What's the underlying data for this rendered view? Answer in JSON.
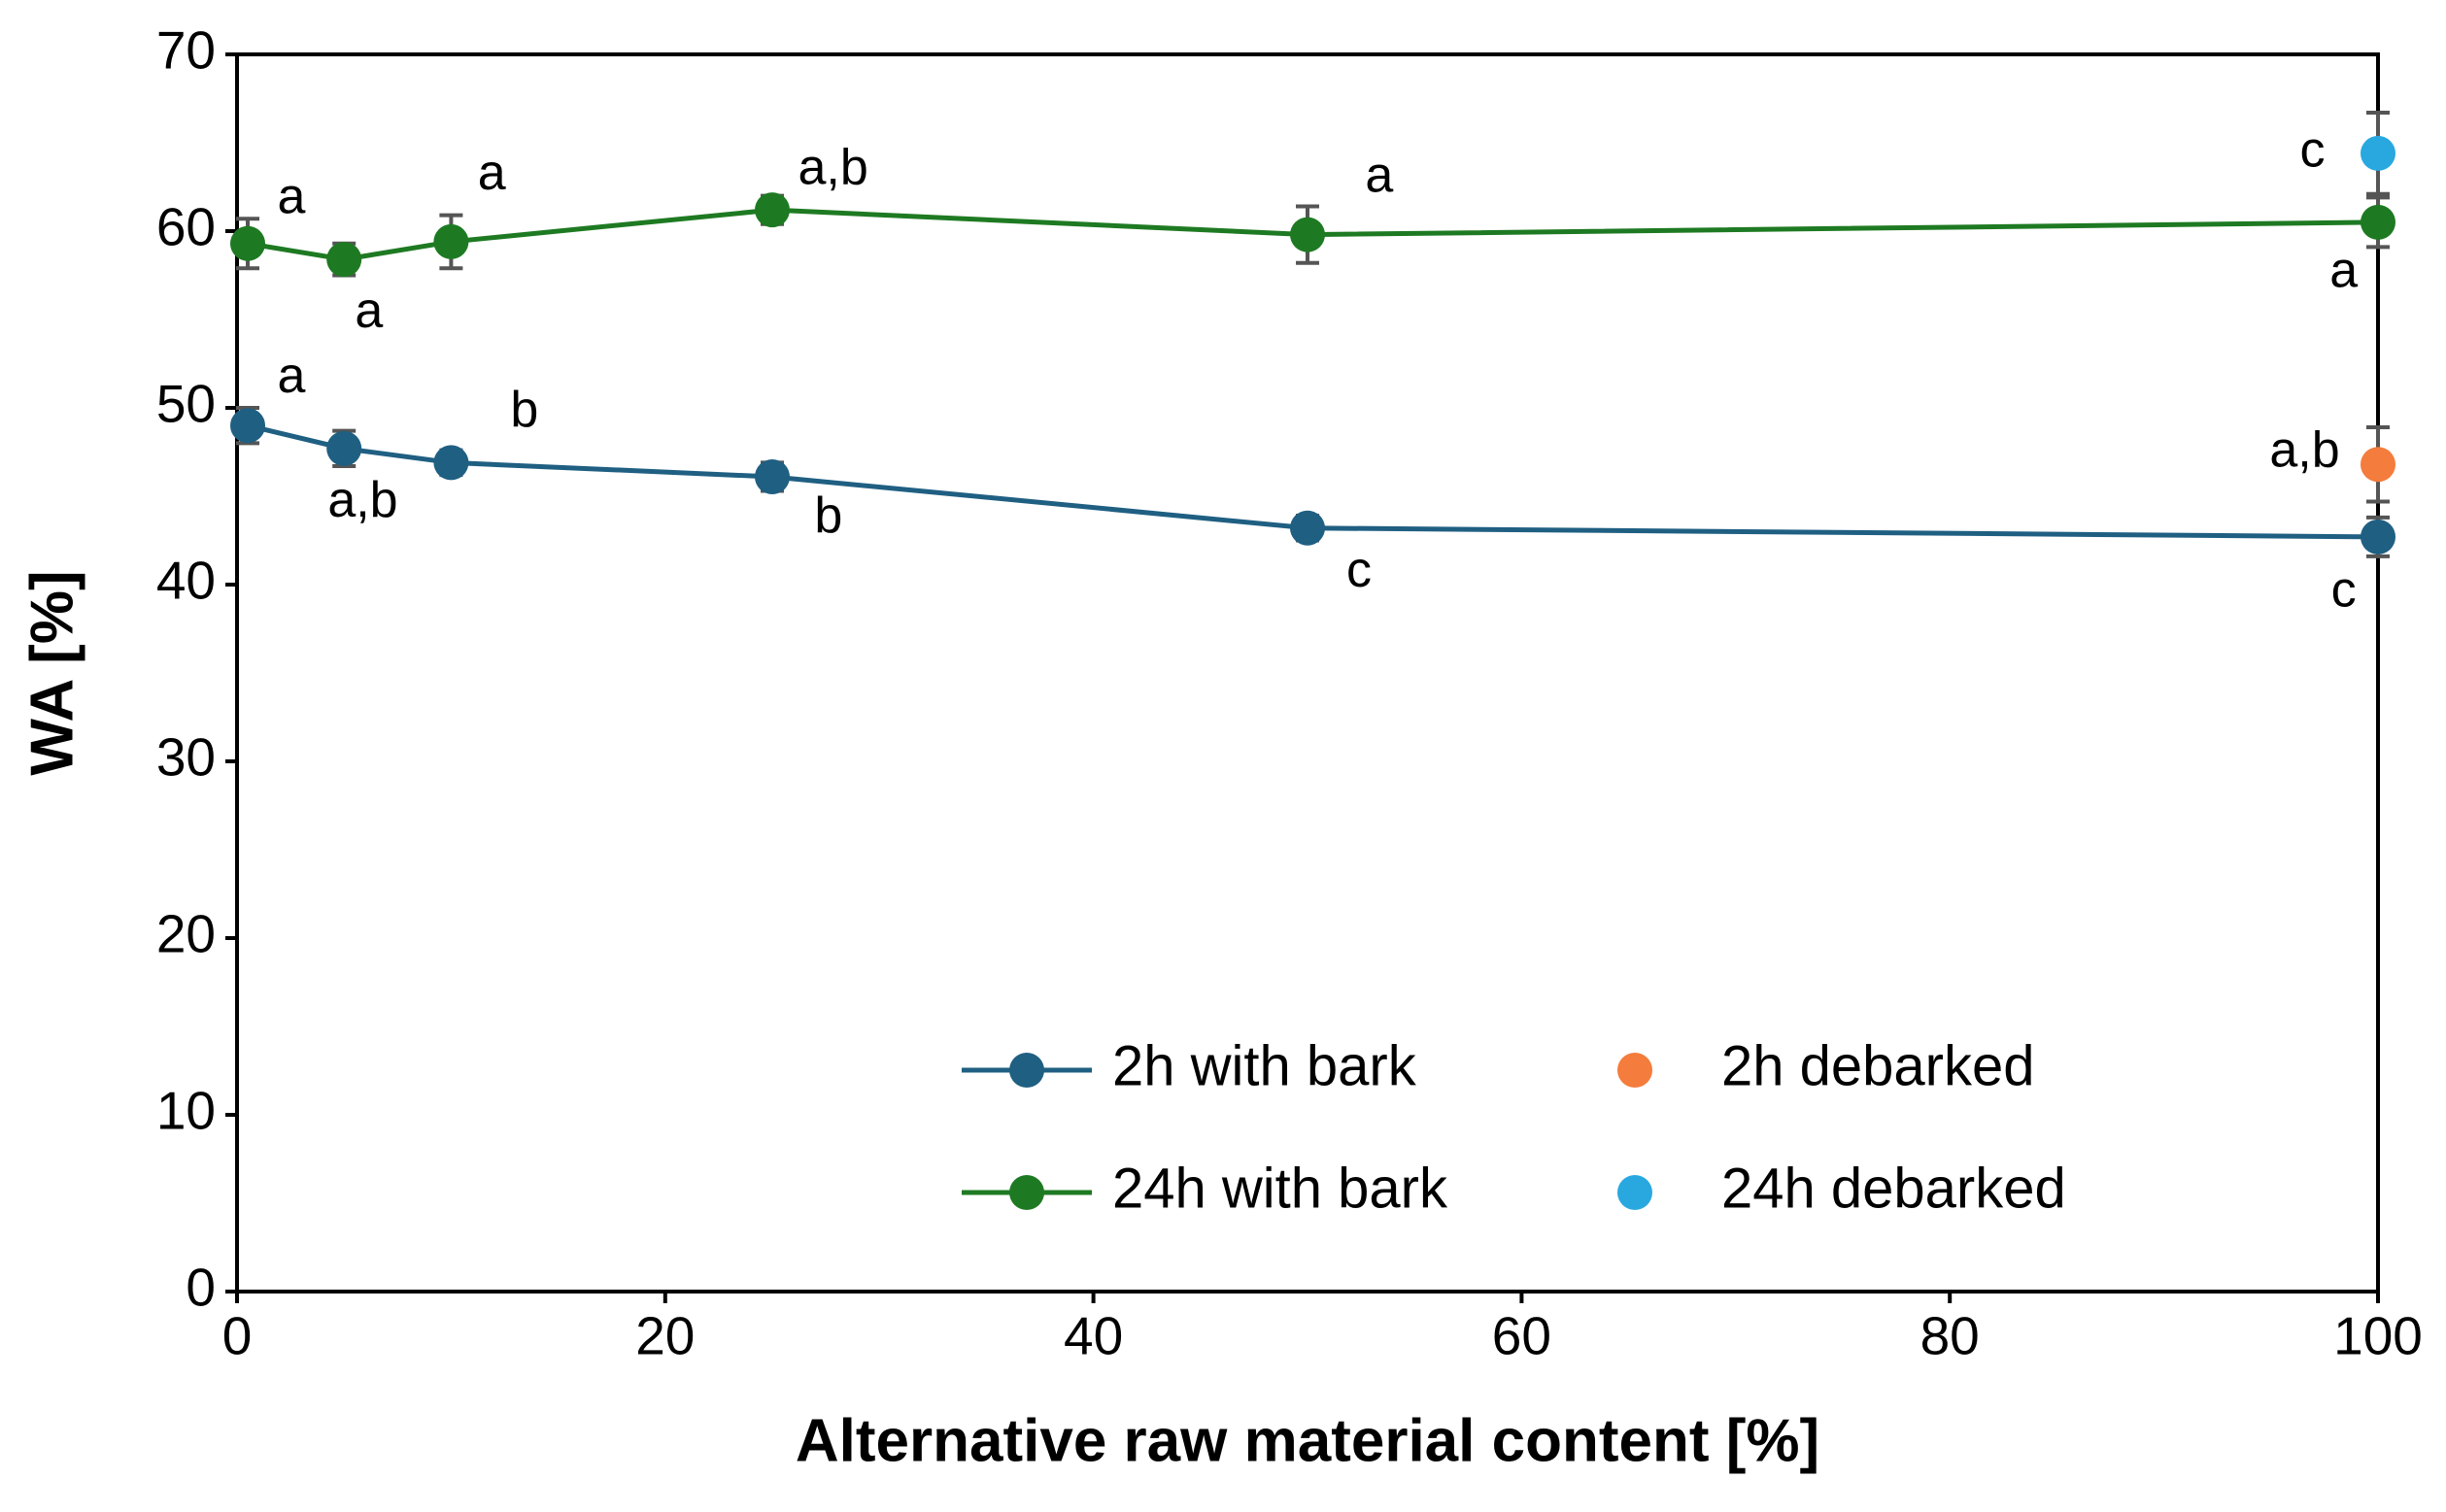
{
  "chart_data": {
    "type": "line",
    "xlabel": "Alternative raw material content [%]",
    "ylabel": "WA [%]",
    "xlim": [
      0,
      100
    ],
    "xticks": [
      0,
      20,
      40,
      60,
      80,
      100
    ],
    "ylim": [
      0,
      70
    ],
    "yticks": [
      0,
      10,
      20,
      30,
      40,
      50,
      60,
      70
    ],
    "legend": "lower right",
    "series": [
      {
        "name": "2h with bark",
        "color": "#1f5f82",
        "line": true,
        "x": [
          0.5,
          5,
          10,
          25,
          50,
          100
        ],
        "values": [
          49.0,
          47.7,
          46.9,
          46.1,
          43.2,
          42.7
        ],
        "errors": [
          1.0,
          1.0,
          0.7,
          0.8,
          0.7,
          1.1
        ],
        "labels": [
          "a",
          "a,b",
          "b",
          "b",
          "c",
          "c"
        ]
      },
      {
        "name": "24h with bark",
        "color": "#1e7a22",
        "line": true,
        "x": [
          0.5,
          5,
          10,
          25,
          50,
          100
        ],
        "values": [
          59.3,
          58.4,
          59.4,
          61.2,
          59.8,
          60.5
        ],
        "errors": [
          1.4,
          0.9,
          1.5,
          0.8,
          1.6,
          1.4
        ],
        "labels": [
          "a",
          "a",
          "a",
          "a,b",
          "a",
          "a"
        ]
      },
      {
        "name": "2h debarked",
        "color": "#f47c3c",
        "line": false,
        "x": [
          100
        ],
        "values": [
          46.8
        ],
        "errors": [
          2.1
        ],
        "labels": [
          "a,b"
        ]
      },
      {
        "name": "24h debarked",
        "color": "#29a8e0",
        "line": false,
        "x": [
          100
        ],
        "values": [
          64.4
        ],
        "errors": [
          2.3
        ],
        "labels": [
          "c"
        ]
      }
    ]
  }
}
